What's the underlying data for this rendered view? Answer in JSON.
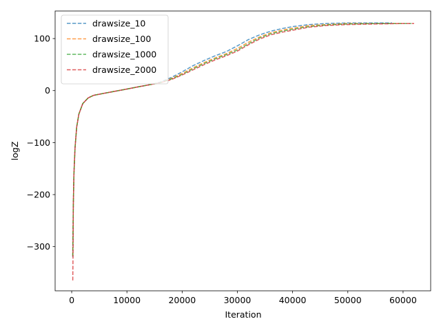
{
  "chart_data": {
    "type": "line",
    "xlabel": "Iteration",
    "ylabel": "logZ",
    "xlim": [
      -3000,
      65000
    ],
    "ylim": [
      -385,
      153
    ],
    "xticks": [
      0,
      10000,
      20000,
      30000,
      40000,
      50000,
      60000
    ],
    "xtick_labels": [
      "0",
      "10000",
      "20000",
      "30000",
      "40000",
      "50000",
      "60000"
    ],
    "yticks": [
      -300,
      -200,
      -100,
      0,
      100
    ],
    "ytick_labels": [
      "−300",
      "−200",
      "−100",
      "0",
      "100"
    ],
    "grid": false,
    "legend_position": "top-left",
    "line_style": "dashed",
    "series": [
      {
        "name": "drawsize_10",
        "color": "#1f77b4",
        "points": [
          [
            200,
            -320
          ],
          [
            300,
            -220
          ],
          [
            400,
            -160
          ],
          [
            600,
            -110
          ],
          [
            900,
            -70
          ],
          [
            1300,
            -45
          ],
          [
            2000,
            -25
          ],
          [
            3000,
            -14
          ],
          [
            4000,
            -9
          ],
          [
            6000,
            -5
          ],
          [
            8000,
            -1
          ],
          [
            10000,
            3
          ],
          [
            12000,
            7
          ],
          [
            14000,
            11
          ],
          [
            16000,
            16
          ],
          [
            18000,
            25
          ],
          [
            20000,
            36
          ],
          [
            22000,
            48
          ],
          [
            24000,
            58
          ],
          [
            26000,
            67
          ],
          [
            28000,
            75
          ],
          [
            30000,
            86
          ],
          [
            32000,
            98
          ],
          [
            34000,
            107
          ],
          [
            36000,
            114
          ],
          [
            38000,
            119
          ],
          [
            40000,
            123
          ],
          [
            43000,
            127
          ],
          [
            46000,
            129
          ],
          [
            50000,
            130
          ],
          [
            55000,
            130
          ],
          [
            58000,
            130
          ]
        ]
      },
      {
        "name": "drawsize_100",
        "color": "#ff7f0e",
        "points": [
          [
            200,
            -318
          ],
          [
            300,
            -220
          ],
          [
            400,
            -160
          ],
          [
            600,
            -110
          ],
          [
            900,
            -70
          ],
          [
            1300,
            -45
          ],
          [
            2000,
            -25
          ],
          [
            3000,
            -14
          ],
          [
            4000,
            -9
          ],
          [
            6000,
            -5
          ],
          [
            8000,
            -1
          ],
          [
            10000,
            3
          ],
          [
            12000,
            7
          ],
          [
            14000,
            11
          ],
          [
            16000,
            15
          ],
          [
            18000,
            23
          ],
          [
            20000,
            33
          ],
          [
            22000,
            44
          ],
          [
            24000,
            54
          ],
          [
            26000,
            63
          ],
          [
            28000,
            71
          ],
          [
            30000,
            81
          ],
          [
            32000,
            93
          ],
          [
            34000,
            103
          ],
          [
            36000,
            111
          ],
          [
            38000,
            116
          ],
          [
            40000,
            120
          ],
          [
            43000,
            125
          ],
          [
            46000,
            127
          ],
          [
            50000,
            129
          ],
          [
            55000,
            129
          ],
          [
            60000,
            129
          ]
        ]
      },
      {
        "name": "drawsize_1000",
        "color": "#2ca02c",
        "points": [
          [
            200,
            -318
          ],
          [
            300,
            -220
          ],
          [
            400,
            -160
          ],
          [
            600,
            -110
          ],
          [
            900,
            -70
          ],
          [
            1300,
            -45
          ],
          [
            2000,
            -25
          ],
          [
            3000,
            -14
          ],
          [
            4000,
            -9
          ],
          [
            6000,
            -5
          ],
          [
            8000,
            -1
          ],
          [
            10000,
            3
          ],
          [
            12000,
            7
          ],
          [
            14000,
            11
          ],
          [
            16000,
            15
          ],
          [
            18000,
            22
          ],
          [
            20000,
            31
          ],
          [
            22000,
            42
          ],
          [
            24000,
            52
          ],
          [
            26000,
            61
          ],
          [
            28000,
            69
          ],
          [
            30000,
            78
          ],
          [
            32000,
            90
          ],
          [
            34000,
            101
          ],
          [
            36000,
            109
          ],
          [
            38000,
            114
          ],
          [
            40000,
            118
          ],
          [
            43000,
            123
          ],
          [
            46000,
            126
          ],
          [
            50000,
            128
          ],
          [
            55000,
            129
          ],
          [
            60000,
            129
          ],
          [
            61500,
            129
          ]
        ]
      },
      {
        "name": "drawsize_2000",
        "color": "#d62728",
        "points": [
          [
            200,
            -365
          ],
          [
            260,
            -300
          ],
          [
            300,
            -220
          ],
          [
            400,
            -160
          ],
          [
            600,
            -110
          ],
          [
            900,
            -70
          ],
          [
            1300,
            -45
          ],
          [
            2000,
            -25
          ],
          [
            3000,
            -14
          ],
          [
            4000,
            -9
          ],
          [
            6000,
            -5
          ],
          [
            8000,
            -1
          ],
          [
            10000,
            3
          ],
          [
            12000,
            7
          ],
          [
            14000,
            11
          ],
          [
            16000,
            15
          ],
          [
            18000,
            21
          ],
          [
            20000,
            30
          ],
          [
            22000,
            40
          ],
          [
            24000,
            50
          ],
          [
            26000,
            59
          ],
          [
            28000,
            67
          ],
          [
            30000,
            76
          ],
          [
            32000,
            88
          ],
          [
            34000,
            99
          ],
          [
            36000,
            107
          ],
          [
            38000,
            112
          ],
          [
            40000,
            116
          ],
          [
            43000,
            122
          ],
          [
            46000,
            125
          ],
          [
            50000,
            127
          ],
          [
            55000,
            128
          ],
          [
            60000,
            129
          ],
          [
            62000,
            129
          ]
        ]
      }
    ]
  }
}
